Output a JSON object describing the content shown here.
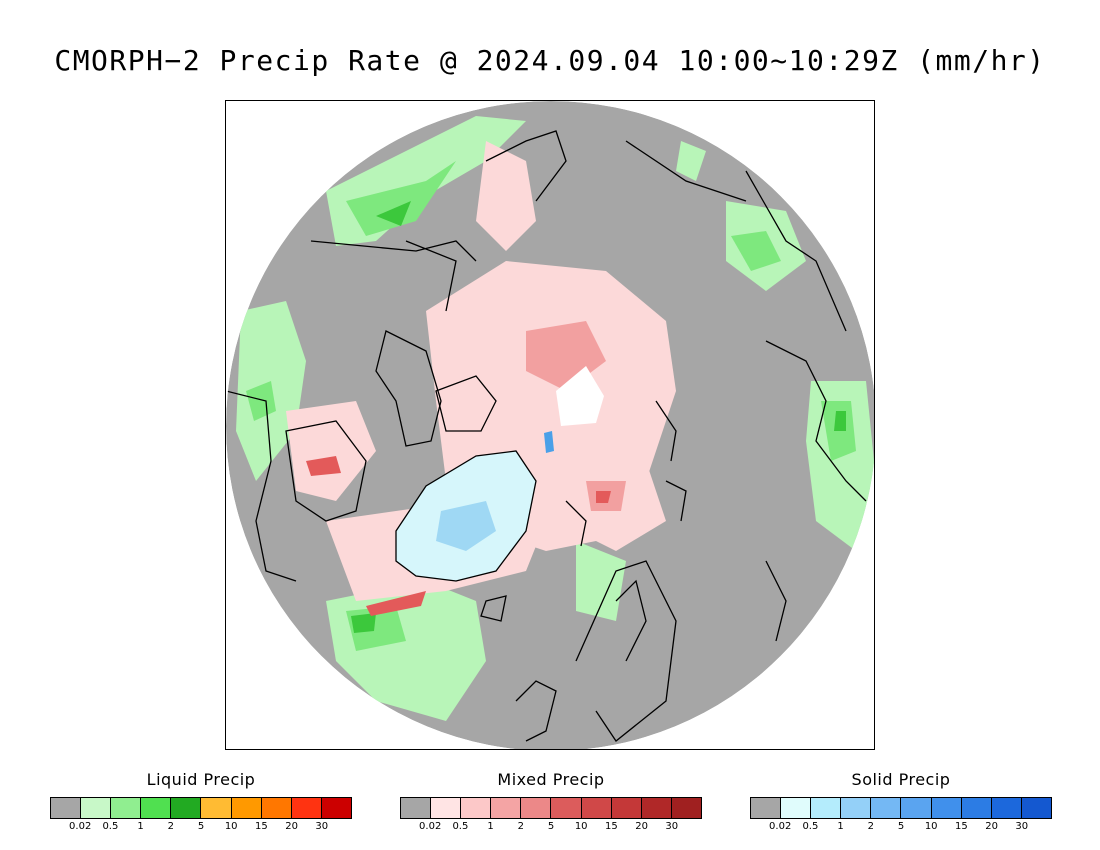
{
  "title": "CMORPH−2 Precip Rate @ 2024.09.04 10:00~10:29Z (mm/hr)",
  "map": {
    "projection": "north-polar-stereographic",
    "colors": {
      "no_precip": "#a6a6a6",
      "land_outline": "#000000",
      "liquid_light": "#b8f5b8",
      "liquid_mid": "#7ee87e",
      "liquid_strong": "#3cc83c",
      "mixed_light": "#fcd9d9",
      "mixed_mid": "#f2a0a0",
      "mixed_strong": "#e35a5a",
      "solid_light": "#d6f6fb",
      "solid_mid": "#9fd8f4",
      "solid_strong": "#4aa0e8",
      "no_data": "#ffffff"
    }
  },
  "legends": [
    {
      "title": "Liquid Precip",
      "colors": [
        "#a6a6a6",
        "#c8f8c8",
        "#90ee90",
        "#50e050",
        "#22aa22",
        "#ffbb33",
        "#ff9900",
        "#ff7700",
        "#ff3311",
        "#cc0000"
      ],
      "ticks": [
        "0.02",
        "0.5",
        "1",
        "2",
        "5",
        "10",
        "15",
        "20",
        "30"
      ]
    },
    {
      "title": "Mixed Precip",
      "colors": [
        "#a6a6a6",
        "#ffe4e4",
        "#fcc8c8",
        "#f4a4a4",
        "#ec8888",
        "#dc5c5c",
        "#d04848",
        "#c43838",
        "#b02828",
        "#a02020"
      ],
      "ticks": [
        "0.02",
        "0.5",
        "1",
        "2",
        "5",
        "10",
        "15",
        "20",
        "30"
      ]
    },
    {
      "title": "Solid Precip",
      "colors": [
        "#a6a6a6",
        "#e0fcfc",
        "#b4ecfc",
        "#94d0f8",
        "#74b8f4",
        "#5aa4f0",
        "#4090ec",
        "#2c7ce4",
        "#1c68dc",
        "#1458d0"
      ],
      "ticks": [
        "0.02",
        "0.5",
        "1",
        "2",
        "5",
        "10",
        "15",
        "20",
        "30"
      ]
    }
  ]
}
